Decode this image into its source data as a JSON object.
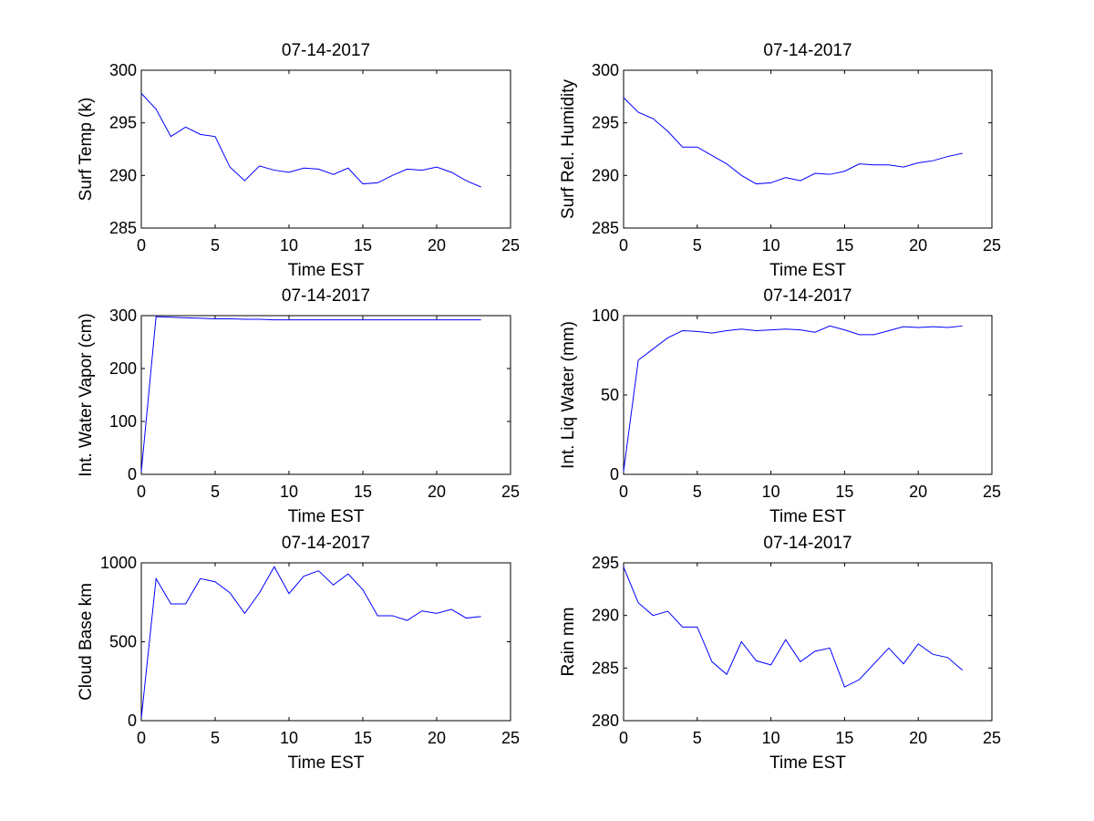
{
  "colors": {
    "line": "#0000ff",
    "axes": "#000000",
    "background": "#ffffff"
  },
  "chart_data": [
    {
      "type": "line",
      "title": "07-14-2017",
      "xlabel": "Time EST",
      "ylabel": "Surf Temp (k)",
      "xlim": [
        0,
        25
      ],
      "ylim": [
        285,
        300
      ],
      "xticks": [
        0,
        5,
        10,
        15,
        20,
        25
      ],
      "yticks": [
        285,
        290,
        295,
        300
      ],
      "grid": false,
      "x": [
        0,
        1,
        2,
        3,
        4,
        5,
        6,
        7,
        8,
        9,
        10,
        11,
        12,
        13,
        14,
        15,
        16,
        17,
        18,
        19,
        20,
        21,
        22,
        23
      ],
      "series": [
        {
          "values": [
            297.8,
            296.3,
            293.7,
            294.6,
            293.9,
            293.7,
            290.8,
            289.5,
            290.9,
            290.5,
            290.3,
            290.7,
            290.6,
            290.1,
            290.7,
            289.2,
            289.3,
            290.0,
            290.6,
            290.5,
            290.8,
            290.3,
            289.5,
            288.9
          ]
        }
      ]
    },
    {
      "type": "line",
      "title": "07-14-2017",
      "xlabel": "Time EST",
      "ylabel": "Surf Rel. Humidity",
      "xlim": [
        0,
        25
      ],
      "ylim": [
        285,
        300
      ],
      "xticks": [
        0,
        5,
        10,
        15,
        20,
        25
      ],
      "yticks": [
        285,
        290,
        295,
        300
      ],
      "grid": false,
      "x": [
        0,
        1,
        2,
        3,
        4,
        5,
        6,
        7,
        8,
        9,
        10,
        11,
        12,
        13,
        14,
        15,
        16,
        17,
        18,
        19,
        20,
        21,
        22,
        23
      ],
      "series": [
        {
          "values": [
            297.4,
            296.0,
            295.4,
            294.2,
            292.7,
            292.7,
            291.9,
            291.1,
            290.0,
            289.2,
            289.3,
            289.8,
            289.5,
            290.2,
            290.1,
            290.4,
            291.1,
            291.0,
            291.0,
            290.8,
            291.2,
            291.4,
            291.8,
            292.1
          ]
        }
      ]
    },
    {
      "type": "line",
      "title": "07-14-2017",
      "xlabel": "Time EST",
      "ylabel": "Int. Water Vapor (cm)",
      "xlim": [
        0,
        25
      ],
      "ylim": [
        0,
        300
      ],
      "xticks": [
        0,
        5,
        10,
        15,
        20,
        25
      ],
      "yticks": [
        0,
        100,
        200,
        300
      ],
      "grid": false,
      "x": [
        0,
        1,
        2,
        3,
        4,
        5,
        6,
        7,
        8,
        9,
        10,
        11,
        12,
        13,
        14,
        15,
        16,
        17,
        18,
        19,
        20,
        21,
        22,
        23
      ],
      "series": [
        {
          "values": [
            5,
            298,
            297,
            296,
            295,
            294,
            294,
            293,
            293,
            292,
            292,
            292,
            292,
            292,
            292,
            292,
            292,
            292,
            292,
            292,
            292,
            292,
            292,
            292
          ]
        }
      ]
    },
    {
      "type": "line",
      "title": "07-14-2017",
      "xlabel": "Time EST",
      "ylabel": "Int. Liq Water (mm)",
      "xlim": [
        0,
        25
      ],
      "ylim": [
        0,
        100
      ],
      "xticks": [
        0,
        5,
        10,
        15,
        20,
        25
      ],
      "yticks": [
        0,
        50,
        100
      ],
      "grid": false,
      "x": [
        0,
        1,
        2,
        3,
        4,
        5,
        6,
        7,
        8,
        9,
        10,
        11,
        12,
        13,
        14,
        15,
        16,
        17,
        18,
        19,
        20,
        21,
        22,
        23
      ],
      "series": [
        {
          "values": [
            2,
            72,
            79,
            86,
            90.5,
            90,
            89,
            90.5,
            91.5,
            90.5,
            91,
            91.5,
            91,
            89.5,
            93.5,
            91,
            88,
            88,
            90.5,
            93,
            92.5,
            93,
            92.5,
            93.5
          ]
        }
      ]
    },
    {
      "type": "line",
      "title": "07-14-2017",
      "xlabel": "Time EST",
      "ylabel": "Cloud Base km",
      "xlim": [
        0,
        25
      ],
      "ylim": [
        0,
        1000
      ],
      "xticks": [
        0,
        5,
        10,
        15,
        20,
        25
      ],
      "yticks": [
        0,
        500,
        1000
      ],
      "grid": false,
      "x": [
        0,
        1,
        2,
        3,
        4,
        5,
        6,
        7,
        8,
        9,
        10,
        11,
        12,
        13,
        14,
        15,
        16,
        17,
        18,
        19,
        20,
        21,
        22,
        23
      ],
      "series": [
        {
          "values": [
            15,
            900,
            740,
            740,
            900,
            880,
            810,
            680,
            810,
            975,
            805,
            915,
            950,
            860,
            930,
            830,
            665,
            665,
            635,
            695,
            680,
            705,
            650,
            660
          ]
        }
      ]
    },
    {
      "type": "line",
      "title": "07-14-2017",
      "xlabel": "Time EST",
      "ylabel": "Rain mm",
      "xlim": [
        0,
        25
      ],
      "ylim": [
        280,
        295
      ],
      "xticks": [
        0,
        5,
        10,
        15,
        20,
        25
      ],
      "yticks": [
        280,
        285,
        290,
        295
      ],
      "grid": false,
      "x": [
        0,
        1,
        2,
        3,
        4,
        5,
        6,
        7,
        8,
        9,
        10,
        11,
        12,
        13,
        14,
        15,
        16,
        17,
        18,
        19,
        20,
        21,
        22,
        23
      ],
      "series": [
        {
          "values": [
            294.6,
            291.2,
            290.0,
            290.4,
            288.9,
            288.9,
            285.6,
            284.4,
            287.5,
            285.7,
            285.3,
            287.7,
            285.6,
            286.6,
            286.9,
            283.2,
            283.9,
            285.4,
            286.9,
            285.4,
            287.3,
            286.3,
            286.0,
            284.8
          ]
        }
      ]
    }
  ]
}
